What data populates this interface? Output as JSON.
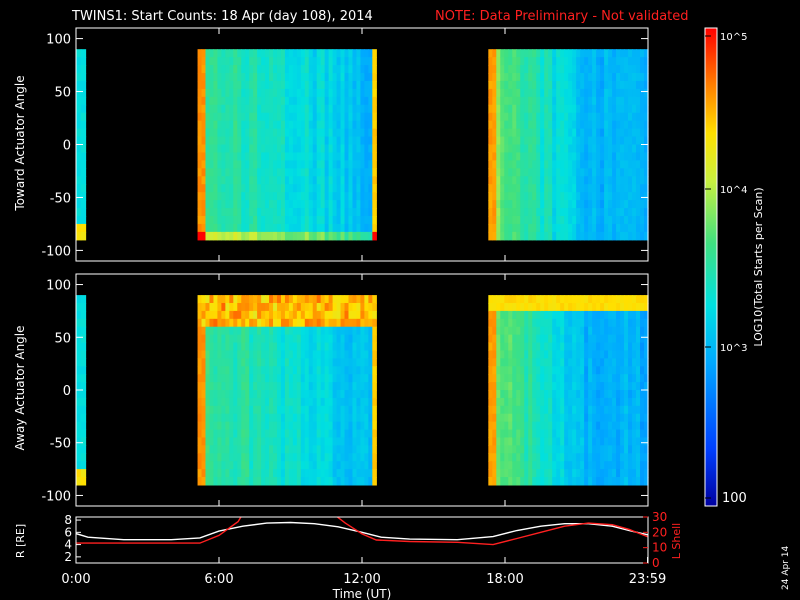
{
  "title": "TWINS1: Start Counts: 18 Apr (day 108), 2014",
  "note": "NOTE: Data Preliminary - Not validated",
  "date_stamp": "24 Apr 14",
  "colorbar": {
    "label": "LOG10(Total Starts per Scan)",
    "ticks": [
      "10^5",
      "10^4",
      "10^3",
      "100"
    ],
    "range": [
      100,
      100000
    ]
  },
  "chart_data": [
    {
      "type": "heatmap",
      "name": "toward",
      "ylabel": "Toward Actuator Angle",
      "yticks": [
        100,
        50,
        0,
        -50,
        -100
      ],
      "ylim": [
        -110,
        110
      ],
      "xlim": [
        0,
        24
      ],
      "data_segments_hours": [
        [
          0,
          0.4
        ],
        [
          5.1,
          12.6
        ],
        [
          17.3,
          24
        ]
      ],
      "angle_range": [
        -90,
        90
      ]
    },
    {
      "type": "heatmap",
      "name": "away",
      "ylabel": "Away Actuator Angle",
      "yticks": [
        100,
        50,
        0,
        -50,
        -100
      ],
      "ylim": [
        -110,
        110
      ],
      "xlim": [
        0,
        24
      ],
      "data_segments_hours": [
        [
          0,
          0.4
        ],
        [
          5.1,
          12.6
        ],
        [
          17.3,
          24
        ]
      ],
      "angle_range": [
        -90,
        90
      ]
    },
    {
      "type": "line",
      "name": "orbit",
      "ylabel_left": "R [RE]",
      "ylabel_right": "L Shell",
      "yticks_left": [
        "8",
        "6",
        "4",
        "2"
      ],
      "yticks_right": [
        "30",
        "20",
        "10",
        "0"
      ],
      "ylim_left": [
        1,
        8.5
      ],
      "ylim_right": [
        0,
        30
      ],
      "xlabel": "Time (UT)",
      "xticks": [
        "0:00",
        "6:00",
        "12:00",
        "18:00",
        "23:59"
      ],
      "xtick_hours": [
        0,
        6,
        12,
        18,
        23.98
      ],
      "series": [
        {
          "color": "#ffffff",
          "x": [
            0,
            0.5,
            2,
            4,
            5.2,
            6,
            7,
            8,
            9,
            10,
            11,
            12,
            12.8,
            14,
            16,
            17.5,
            18.5,
            19.5,
            20.5,
            21.5,
            22.5,
            23.2,
            24
          ],
          "y": [
            5.8,
            5.2,
            4.8,
            4.8,
            5.1,
            6.2,
            7.0,
            7.5,
            7.6,
            7.4,
            6.9,
            6.0,
            5.2,
            4.9,
            4.8,
            5.3,
            6.3,
            7.0,
            7.4,
            7.4,
            7.0,
            6.3,
            5.6
          ]
        },
        {
          "color": "#ff2020",
          "x": [
            0,
            1,
            3,
            5.2,
            6,
            6.8,
            7.0
          ],
          "y": [
            13,
            13,
            13,
            13,
            18,
            27,
            32
          ]
        },
        {
          "color": "#ff2020",
          "x": [
            10.8,
            11.3,
            12,
            12.6,
            14,
            16,
            17.5,
            18.5,
            19.5,
            20.5,
            21.5,
            22.5,
            23.2,
            24
          ],
          "y": [
            32,
            26,
            19,
            15,
            14,
            13.5,
            12,
            16,
            20,
            24,
            26,
            25,
            22,
            17
          ]
        }
      ]
    }
  ]
}
